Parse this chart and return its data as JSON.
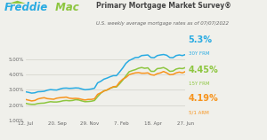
{
  "title": "Primary Mortgage Market Survey®",
  "subtitle": "U.S. weekly average mortgage rates as of 07/07/2022",
  "x_labels": [
    "12. Jul",
    "20. Sep",
    "29. Nov",
    "7. Feb",
    "18. Apr",
    "27. Jun"
  ],
  "ylim": [
    1.0,
    5.75
  ],
  "yticks": [
    1.0,
    2.0,
    3.0,
    4.0,
    5.0
  ],
  "ytick_labels": [
    "1.00%",
    "2.00%",
    "3.00%",
    "4.00%",
    "5.00%"
  ],
  "color_30y": "#29ABE2",
  "color_15y": "#8DC63F",
  "color_arm": "#F7941D",
  "label_30y": "5.3%",
  "sublabel_30y": "30Y FRM",
  "label_15y": "4.45%",
  "sublabel_15y": "15Y FRM",
  "label_arm": "4.19%",
  "sublabel_arm": "5/1 ARM",
  "bg_color": "#f0f0eb",
  "grid_color": "#d0d0c8",
  "freddie_blue": "#29ABE2",
  "freddie_green": "#8DC63F",
  "n_points": 52,
  "y_30y": [
    2.87,
    2.83,
    2.78,
    2.8,
    2.87,
    2.88,
    2.9,
    2.97,
    3.01,
    2.99,
    2.98,
    3.05,
    3.1,
    3.11,
    3.09,
    3.1,
    3.12,
    3.11,
    3.05,
    3.0,
    3.02,
    3.05,
    3.1,
    3.45,
    3.55,
    3.69,
    3.76,
    3.85,
    3.92,
    3.92,
    4.16,
    4.42,
    4.72,
    4.9,
    5.0,
    5.1,
    5.11,
    5.23,
    5.25,
    5.27,
    5.1,
    5.09,
    5.23,
    5.27,
    5.3,
    5.25,
    5.1,
    5.09,
    5.23,
    5.27,
    5.23,
    5.3
  ],
  "y_15y": [
    2.12,
    2.07,
    2.05,
    2.05,
    2.1,
    2.12,
    2.13,
    2.18,
    2.22,
    2.2,
    2.2,
    2.23,
    2.28,
    2.3,
    2.28,
    2.3,
    2.35,
    2.33,
    2.27,
    2.22,
    2.23,
    2.25,
    2.3,
    2.55,
    2.77,
    2.93,
    2.98,
    3.1,
    3.17,
    3.18,
    3.39,
    3.63,
    3.9,
    4.17,
    4.25,
    4.31,
    4.4,
    4.45,
    4.4,
    4.43,
    4.2,
    4.2,
    4.38,
    4.4,
    4.45,
    4.35,
    4.2,
    4.22,
    4.35,
    4.4,
    4.38,
    4.45
  ],
  "y_arm": [
    2.37,
    2.32,
    2.27,
    2.3,
    2.4,
    2.45,
    2.48,
    2.42,
    2.4,
    2.38,
    2.45,
    2.48,
    2.5,
    2.52,
    2.45,
    2.43,
    2.44,
    2.42,
    2.37,
    2.33,
    2.37,
    2.37,
    2.41,
    2.7,
    2.8,
    2.91,
    2.99,
    3.1,
    3.2,
    3.22,
    3.5,
    3.69,
    3.8,
    3.98,
    4.05,
    4.1,
    4.12,
    4.08,
    4.08,
    4.1,
    3.98,
    3.95,
    4.05,
    4.1,
    4.19,
    4.1,
    3.98,
    4.0,
    4.1,
    4.15,
    4.1,
    4.19
  ]
}
